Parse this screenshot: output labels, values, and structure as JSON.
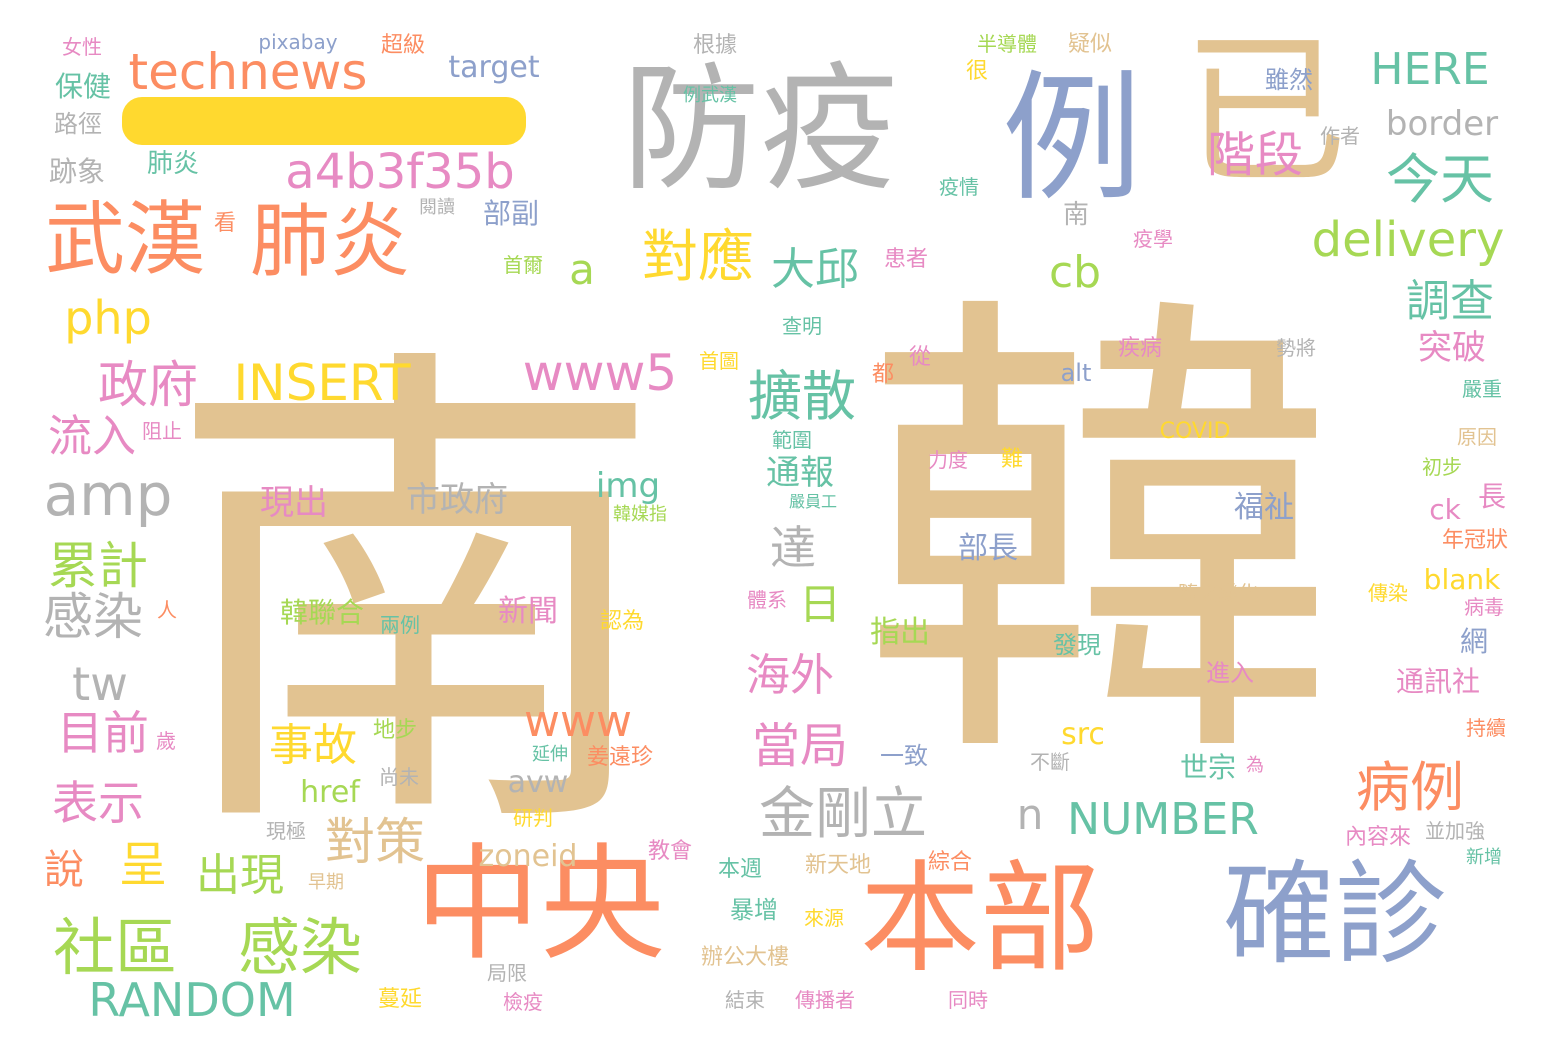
{
  "colors": {
    "tan": "#e2c391",
    "orange": "#fc8d62",
    "blue": "#8da0cb",
    "gray": "#b3b3b3",
    "green": "#66c2a5",
    "lime": "#a6d854",
    "yellow": "#ffd92f",
    "pink": "#e78ac3"
  },
  "words": [
    {
      "text": "南",
      "color": "tan"
    },
    {
      "text": "韓",
      "color": "tan"
    },
    {
      "text": "防疫",
      "color": "gray"
    },
    {
      "text": "例",
      "color": "blue"
    },
    {
      "text": "已",
      "color": "tan"
    },
    {
      "text": "中央",
      "color": "orange"
    },
    {
      "text": "本部",
      "color": "orange"
    },
    {
      "text": "確診",
      "color": "blue"
    },
    {
      "text": "武漢",
      "color": "orange"
    },
    {
      "text": "肺炎",
      "color": "orange"
    },
    {
      "text": "technews",
      "color": "orange"
    },
    {
      "text": "a4b3f35b",
      "color": "pink"
    },
    {
      "text": "今天",
      "color": "green"
    },
    {
      "text": "HERE",
      "color": "green"
    },
    {
      "text": "delivery",
      "color": "lime"
    },
    {
      "text": "階段",
      "color": "pink"
    },
    {
      "text": "border",
      "color": "gray"
    },
    {
      "text": "對應",
      "color": "yellow"
    },
    {
      "text": "大邱",
      "color": "green"
    },
    {
      "text": "cb",
      "color": "lime"
    },
    {
      "text": "a",
      "color": "lime"
    },
    {
      "text": "php",
      "color": "yellow"
    },
    {
      "text": "INSERT",
      "color": "yellow"
    },
    {
      "text": "政府",
      "color": "pink"
    },
    {
      "text": "www5",
      "color": "pink"
    },
    {
      "text": "擴散",
      "color": "green"
    },
    {
      "text": "調查",
      "color": "green"
    },
    {
      "text": "突破",
      "color": "pink"
    },
    {
      "text": "amp",
      "color": "gray"
    },
    {
      "text": "流入",
      "color": "pink"
    },
    {
      "text": "累計",
      "color": "lime"
    },
    {
      "text": "感染",
      "color": "gray"
    },
    {
      "text": "tw",
      "color": "gray"
    },
    {
      "text": "目前",
      "color": "pink"
    },
    {
      "text": "表示",
      "color": "pink"
    },
    {
      "text": "說",
      "color": "orange"
    },
    {
      "text": "呈",
      "color": "yellow"
    },
    {
      "text": "社區",
      "color": "lime"
    },
    {
      "text": "感染",
      "color": "lime"
    },
    {
      "text": "RANDOM",
      "color": "green"
    },
    {
      "text": "出現",
      "color": "lime"
    },
    {
      "text": "對策",
      "color": "tan"
    },
    {
      "text": "www",
      "color": "orange"
    },
    {
      "text": "事故",
      "color": "yellow"
    },
    {
      "text": "海外",
      "color": "pink"
    },
    {
      "text": "當局",
      "color": "pink"
    },
    {
      "text": "金剛立",
      "color": "gray"
    },
    {
      "text": "達",
      "color": "gray"
    },
    {
      "text": "日",
      "color": "lime"
    },
    {
      "text": "n",
      "color": "gray"
    },
    {
      "text": "NUMBER",
      "color": "green"
    },
    {
      "text": "病例",
      "color": "orange"
    },
    {
      "text": "現出",
      "color": "pink"
    },
    {
      "text": "市政府",
      "color": "gray"
    },
    {
      "text": "img",
      "color": "green"
    },
    {
      "text": "通報",
      "color": "green"
    },
    {
      "text": "福祉",
      "color": "blue"
    },
    {
      "text": "部長",
      "color": "blue"
    },
    {
      "text": "ck",
      "color": "pink"
    },
    {
      "text": "blank",
      "color": "yellow"
    },
    {
      "text": "通訊社",
      "color": "pink"
    },
    {
      "text": "網",
      "color": "blue"
    },
    {
      "text": "zoneid",
      "color": "tan"
    },
    {
      "text": "src",
      "color": "yellow"
    },
    {
      "text": "href",
      "color": "lime"
    },
    {
      "text": "avw",
      "color": "gray"
    },
    {
      "text": "世宗",
      "color": "green"
    },
    {
      "text": "指出",
      "color": "lime"
    },
    {
      "text": "新聞",
      "color": "pink"
    },
    {
      "text": "韓聯合",
      "color": "lime"
    },
    {
      "text": "target",
      "color": "blue"
    },
    {
      "text": "pixabay",
      "color": "blue"
    },
    {
      "text": "女性",
      "color": "pink"
    },
    {
      "text": "超級",
      "color": "orange"
    },
    {
      "text": "根據",
      "color": "gray"
    },
    {
      "text": "半導體",
      "color": "lime"
    },
    {
      "text": "疑似",
      "color": "tan"
    },
    {
      "text": "保健",
      "color": "green"
    },
    {
      "text": "路徑",
      "color": "gray"
    },
    {
      "text": "跡象",
      "color": "gray"
    },
    {
      "text": "肺炎",
      "color": "green"
    },
    {
      "text": "很",
      "color": "yellow"
    },
    {
      "text": "例武漢",
      "color": "green"
    },
    {
      "text": "雖然",
      "color": "blue"
    },
    {
      "text": "作者",
      "color": "gray"
    },
    {
      "text": "疫情",
      "color": "green"
    },
    {
      "text": "閱讀",
      "color": "gray"
    },
    {
      "text": "部副",
      "color": "blue"
    },
    {
      "text": "看",
      "color": "orange"
    },
    {
      "text": "南",
      "color": "gray"
    },
    {
      "text": "首爾",
      "color": "lime"
    },
    {
      "text": "患者",
      "color": "pink"
    },
    {
      "text": "疫學",
      "color": "pink"
    },
    {
      "text": "查明",
      "color": "green"
    },
    {
      "text": "首圖",
      "color": "yellow"
    },
    {
      "text": "都",
      "color": "orange"
    },
    {
      "text": "從",
      "color": "pink"
    },
    {
      "text": "alt",
      "color": "blue"
    },
    {
      "text": "疾病",
      "color": "pink"
    },
    {
      "text": "勢將",
      "color": "gray"
    },
    {
      "text": "嚴重",
      "color": "green"
    },
    {
      "text": "COVID",
      "color": "yellow"
    },
    {
      "text": "原因",
      "color": "tan"
    },
    {
      "text": "阻止",
      "color": "pink"
    },
    {
      "text": "範圍",
      "color": "green"
    },
    {
      "text": "力度",
      "color": "pink"
    },
    {
      "text": "難",
      "color": "yellow"
    },
    {
      "text": "初步",
      "color": "lime"
    },
    {
      "text": "長",
      "color": "pink"
    },
    {
      "text": "嚴員工",
      "color": "green"
    },
    {
      "text": "韓媒指",
      "color": "lime"
    },
    {
      "text": "年冠狀",
      "color": "orange"
    },
    {
      "text": "人",
      "color": "orange"
    },
    {
      "text": "體系",
      "color": "pink"
    },
    {
      "text": "隨之變化",
      "color": "tan"
    },
    {
      "text": "傳染",
      "color": "yellow"
    },
    {
      "text": "病毒",
      "color": "pink"
    },
    {
      "text": "兩例",
      "color": "green"
    },
    {
      "text": "認為",
      "color": "yellow"
    },
    {
      "text": "發現",
      "color": "green"
    },
    {
      "text": "進入",
      "color": "pink"
    },
    {
      "text": "持續",
      "color": "orange"
    },
    {
      "text": "地步",
      "color": "lime"
    },
    {
      "text": "歲",
      "color": "pink"
    },
    {
      "text": "延伸",
      "color": "green"
    },
    {
      "text": "姜遠珍",
      "color": "orange"
    },
    {
      "text": "一致",
      "color": "blue"
    },
    {
      "text": "不斷",
      "color": "gray"
    },
    {
      "text": "為",
      "color": "pink"
    },
    {
      "text": "尚未",
      "color": "gray"
    },
    {
      "text": "研判",
      "color": "yellow"
    },
    {
      "text": "現極",
      "color": "gray"
    },
    {
      "text": "早期",
      "color": "tan"
    },
    {
      "text": "教會",
      "color": "pink"
    },
    {
      "text": "本週",
      "color": "green"
    },
    {
      "text": "新天地",
      "color": "tan"
    },
    {
      "text": "綜合",
      "color": "orange"
    },
    {
      "text": "內容來",
      "color": "pink"
    },
    {
      "text": "並加強",
      "color": "gray"
    },
    {
      "text": "新增",
      "color": "green"
    },
    {
      "text": "暴增",
      "color": "green"
    },
    {
      "text": "來源",
      "color": "yellow"
    },
    {
      "text": "辦公大樓",
      "color": "tan"
    },
    {
      "text": "局限",
      "color": "gray"
    },
    {
      "text": "蔓延",
      "color": "yellow"
    },
    {
      "text": "檢疫",
      "color": "pink"
    },
    {
      "text": "結束",
      "color": "gray"
    },
    {
      "text": "傳播者",
      "color": "pink"
    },
    {
      "text": "同時",
      "color": "pink"
    }
  ]
}
